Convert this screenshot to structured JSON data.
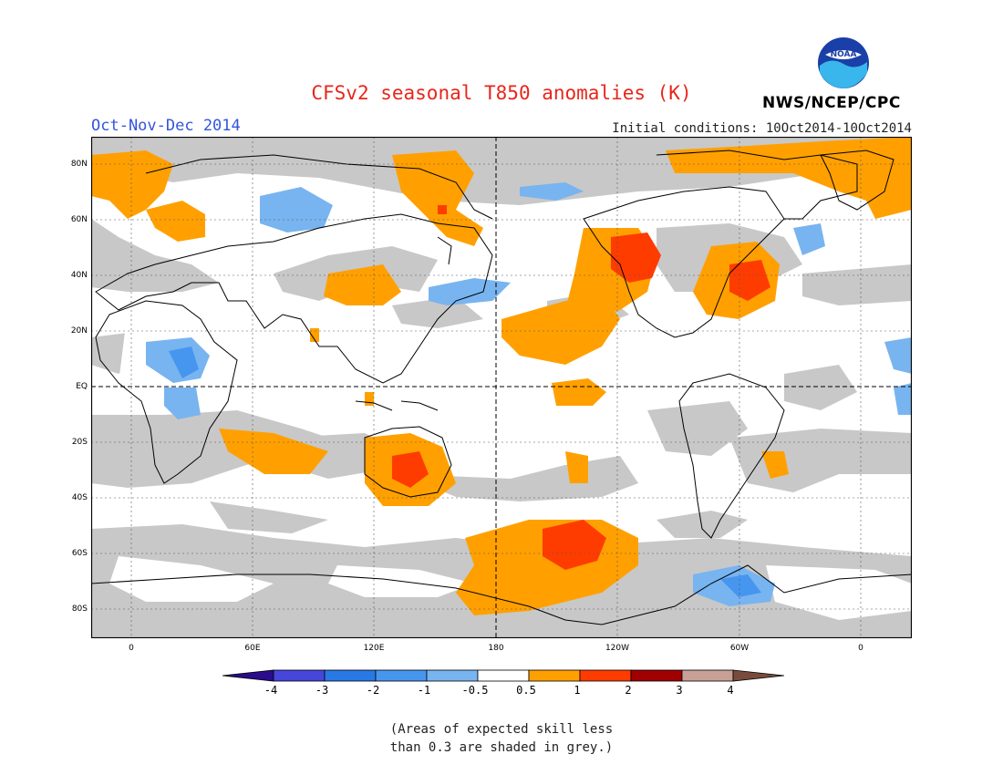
{
  "header": {
    "title": "CFSv2 seasonal T850 anomalies (K)",
    "season": "Oct-Nov-Dec 2014",
    "initial_conditions": "Initial conditions: 10Oct2014-10Oct2014",
    "agency": "NWS/NCEP/CPC",
    "logo_text": "NOAA"
  },
  "map": {
    "lat_labels": [
      "80N",
      "60N",
      "40N",
      "20N",
      "EQ",
      "20S",
      "40S",
      "60S",
      "80S"
    ],
    "lon_labels": [
      "0",
      "60E",
      "120E",
      "180",
      "120W",
      "60W",
      "0"
    ],
    "colors": {
      "grey_skill": "#c8c8c8",
      "warm_1": "#ffa000",
      "warm_2": "#ff3c00",
      "cool_1": "#78b4f0",
      "cool_2": "#4696f0",
      "land_line": "#000000"
    }
  },
  "colorbar": {
    "labels": [
      "-4",
      "-3",
      "-2",
      "-1",
      "-0.5",
      "0.5",
      "1",
      "2",
      "3",
      "4"
    ],
    "colors": [
      "#2a0c8c",
      "#4646dc",
      "#2878e6",
      "#4696f0",
      "#78b4f0",
      "#ffffff",
      "#ffa000",
      "#ff3c00",
      "#a00000",
      "#c8a096",
      "#784b3c"
    ]
  },
  "footnote": {
    "line1": "(Areas of expected skill less",
    "line2": "than 0.3 are shaded in grey.)"
  }
}
